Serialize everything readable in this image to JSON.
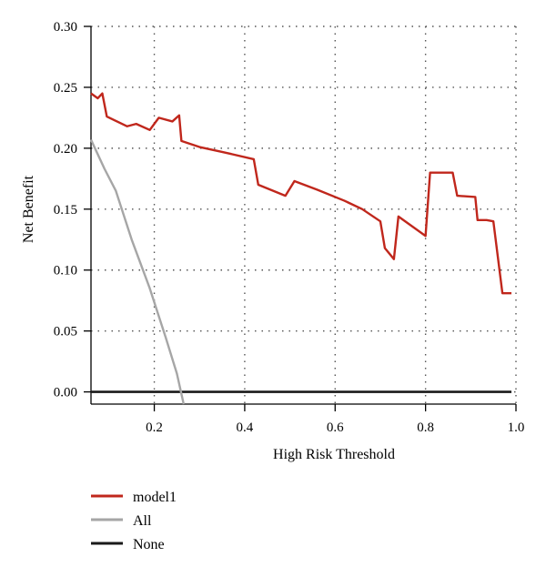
{
  "chart_data": {
    "type": "line",
    "title": "",
    "xlabel": "High Risk Threshold",
    "ylabel": "Net Benefit",
    "xlim": [
      0.06,
      1.0
    ],
    "ylim": [
      -0.01,
      0.3
    ],
    "x_ticks": [
      0.2,
      0.4,
      0.6,
      0.8,
      1.0
    ],
    "x_tick_labels": [
      "0.2",
      "0.4",
      "0.6",
      "0.8",
      "1.0"
    ],
    "y_ticks": [
      0.0,
      0.05,
      0.1,
      0.15,
      0.2,
      0.25,
      0.3
    ],
    "y_tick_labels": [
      "0.00",
      "0.05",
      "0.10",
      "0.15",
      "0.20",
      "0.25",
      "0.30"
    ],
    "grid": true,
    "legend_position": "bottom-left",
    "series": [
      {
        "name": "model1",
        "color": "#c0271c",
        "points": [
          [
            0.06,
            0.245
          ],
          [
            0.075,
            0.241
          ],
          [
            0.085,
            0.245
          ],
          [
            0.095,
            0.226
          ],
          [
            0.14,
            0.218
          ],
          [
            0.16,
            0.22
          ],
          [
            0.19,
            0.215
          ],
          [
            0.21,
            0.225
          ],
          [
            0.24,
            0.222
          ],
          [
            0.255,
            0.227
          ],
          [
            0.26,
            0.206
          ],
          [
            0.3,
            0.201
          ],
          [
            0.35,
            0.197
          ],
          [
            0.42,
            0.191
          ],
          [
            0.43,
            0.17
          ],
          [
            0.49,
            0.161
          ],
          [
            0.51,
            0.173
          ],
          [
            0.56,
            0.166
          ],
          [
            0.62,
            0.157
          ],
          [
            0.66,
            0.15
          ],
          [
            0.7,
            0.14
          ],
          [
            0.71,
            0.118
          ],
          [
            0.73,
            0.109
          ],
          [
            0.74,
            0.144
          ],
          [
            0.8,
            0.128
          ],
          [
            0.81,
            0.18
          ],
          [
            0.86,
            0.18
          ],
          [
            0.87,
            0.161
          ],
          [
            0.91,
            0.16
          ],
          [
            0.915,
            0.141
          ],
          [
            0.935,
            0.141
          ],
          [
            0.95,
            0.14
          ],
          [
            0.97,
            0.081
          ],
          [
            0.99,
            0.081
          ]
        ]
      },
      {
        "name": "All",
        "color": "#a6a6a6",
        "points": [
          [
            0.06,
            0.207
          ],
          [
            0.075,
            0.195
          ],
          [
            0.09,
            0.183
          ],
          [
            0.115,
            0.165
          ],
          [
            0.15,
            0.125
          ],
          [
            0.19,
            0.085
          ],
          [
            0.225,
            0.045
          ],
          [
            0.25,
            0.015
          ],
          [
            0.265,
            -0.01
          ]
        ]
      },
      {
        "name": "None",
        "color": "#1a1a1a",
        "points": [
          [
            0.06,
            0.0
          ],
          [
            0.99,
            0.0
          ]
        ]
      }
    ]
  }
}
